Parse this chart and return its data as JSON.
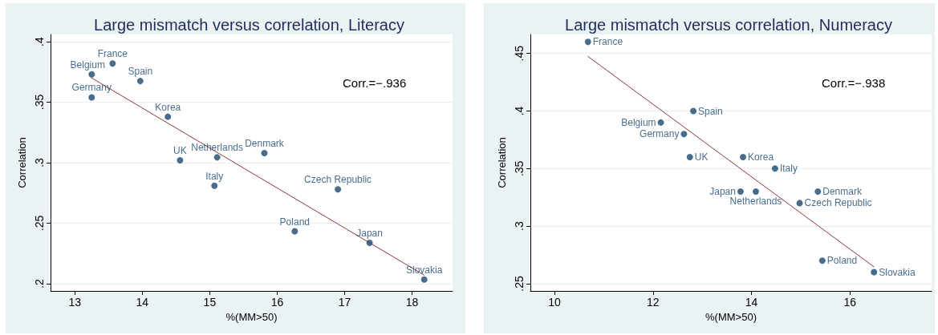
{
  "chart_data": [
    {
      "type": "scatter",
      "title": "Large mismatch versus correlation, Literacy",
      "xlabel": "%(MM>50)",
      "ylabel": "Correlation",
      "annotations": [
        "Corr.=−.936"
      ],
      "xlim": [
        12.64,
        18.6
      ],
      "xticks": [
        13,
        14,
        15,
        16,
        17,
        18
      ],
      "ylim": [
        0.194,
        0.406
      ],
      "yticks": [
        {
          "value": 0.2,
          "label": ".2"
        },
        {
          "value": 0.25,
          "label": ".25"
        },
        {
          "value": 0.3,
          "label": ".3"
        },
        {
          "value": 0.35,
          "label": ".35"
        },
        {
          "value": 0.4,
          "label": ".4"
        }
      ],
      "grid": "y",
      "marker": "circle",
      "series": [
        {
          "name": "France",
          "x": [
            13.56
          ],
          "values": [
            0.382
          ],
          "color": "#1a476f"
        },
        {
          "name": "Belgium",
          "x": [
            13.25
          ],
          "values": [
            0.373
          ],
          "color": "#1a476f"
        },
        {
          "name": "Spain",
          "x": [
            13.97
          ],
          "values": [
            0.3675
          ],
          "color": "#1a476f"
        },
        {
          "name": "Germany",
          "x": [
            13.25
          ],
          "values": [
            0.354
          ],
          "color": "#1a476f"
        },
        {
          "name": "Korea",
          "x": [
            14.38
          ],
          "values": [
            0.338
          ],
          "color": "#1a476f"
        },
        {
          "name": "UK",
          "x": [
            14.56
          ],
          "values": [
            0.302
          ],
          "color": "#1a476f"
        },
        {
          "name": "Netherlands",
          "x": [
            15.11
          ],
          "values": [
            0.3044
          ],
          "color": "#1a476f"
        },
        {
          "name": "Italy",
          "x": [
            15.07
          ],
          "values": [
            0.281
          ],
          "color": "#1a476f"
        },
        {
          "name": "Denmark",
          "x": [
            15.81
          ],
          "values": [
            0.308
          ],
          "color": "#1a476f"
        },
        {
          "name": "Czech Republic",
          "x": [
            16.9
          ],
          "values": [
            0.278
          ],
          "color": "#1a476f"
        },
        {
          "name": "Poland",
          "x": [
            16.26
          ],
          "values": [
            0.2433
          ],
          "color": "#1a476f"
        },
        {
          "name": "Japan",
          "x": [
            17.37
          ],
          "values": [
            0.2338
          ],
          "color": "#1a476f"
        },
        {
          "name": "Slovakia",
          "x": [
            18.18
          ],
          "values": [
            0.2034
          ],
          "color": "#1a476f"
        },
        {
          "type": "line",
          "x": [
            13.25,
            18.18
          ],
          "values": [
            0.37,
            0.207
          ],
          "color": "#90353b",
          "marker": "none",
          "line_style": "solid"
        }
      ]
    },
    {
      "type": "scatter",
      "title": "Large mismatch versus correlation, Numeracy",
      "xlabel": "%(MM>50)",
      "ylabel": "Correlation",
      "annotations": [
        "Corr.=−.938"
      ],
      "xlim": [
        9.51,
        17.66
      ],
      "xticks": [
        10,
        12,
        14,
        16
      ],
      "ylim": [
        0.2437,
        0.4665
      ],
      "yticks": [
        {
          "value": 0.25,
          "label": ".25"
        },
        {
          "value": 0.3,
          "label": ".3"
        },
        {
          "value": 0.35,
          "label": ".35"
        },
        {
          "value": 0.4,
          "label": ".4"
        },
        {
          "value": 0.45,
          "label": ".45"
        }
      ],
      "grid": "y",
      "marker": "circle",
      "series": [
        {
          "name": "France",
          "x": [
            10.68
          ],
          "values": [
            0.46
          ],
          "color": "#1a476f"
        },
        {
          "name": "Spain",
          "x": [
            12.82
          ],
          "values": [
            0.4
          ],
          "color": "#1a476f"
        },
        {
          "name": "Belgium",
          "x": [
            12.16
          ],
          "values": [
            0.39
          ],
          "color": "#1a476f"
        },
        {
          "name": "Germany",
          "x": [
            12.63
          ],
          "values": [
            0.38
          ],
          "color": "#1a476f"
        },
        {
          "name": "UK",
          "x": [
            12.75
          ],
          "values": [
            0.36
          ],
          "color": "#1a476f"
        },
        {
          "name": "Korea",
          "x": [
            13.83
          ],
          "values": [
            0.36
          ],
          "color": "#1a476f"
        },
        {
          "name": "Italy",
          "x": [
            14.48
          ],
          "values": [
            0.35
          ],
          "color": "#1a476f"
        },
        {
          "name": "Japan",
          "x": [
            13.78
          ],
          "values": [
            0.33
          ],
          "color": "#1a476f"
        },
        {
          "name": "Netherlands",
          "x": [
            14.09
          ],
          "values": [
            0.33
          ],
          "color": "#1a476f"
        },
        {
          "name": "Denmark",
          "x": [
            15.35
          ],
          "values": [
            0.33
          ],
          "color": "#1a476f"
        },
        {
          "name": "Czech Republic",
          "x": [
            14.98
          ],
          "values": [
            0.32
          ],
          "color": "#1a476f"
        },
        {
          "name": "Poland",
          "x": [
            15.44
          ],
          "values": [
            0.27
          ],
          "color": "#1a476f"
        },
        {
          "name": "Slovakia",
          "x": [
            16.49
          ],
          "values": [
            0.26
          ],
          "color": "#1a476f"
        },
        {
          "type": "line",
          "x": [
            10.68,
            16.49
          ],
          "values": [
            0.4474,
            0.2646
          ],
          "color": "#90353b",
          "marker": "none",
          "line_style": "solid"
        }
      ]
    }
  ]
}
